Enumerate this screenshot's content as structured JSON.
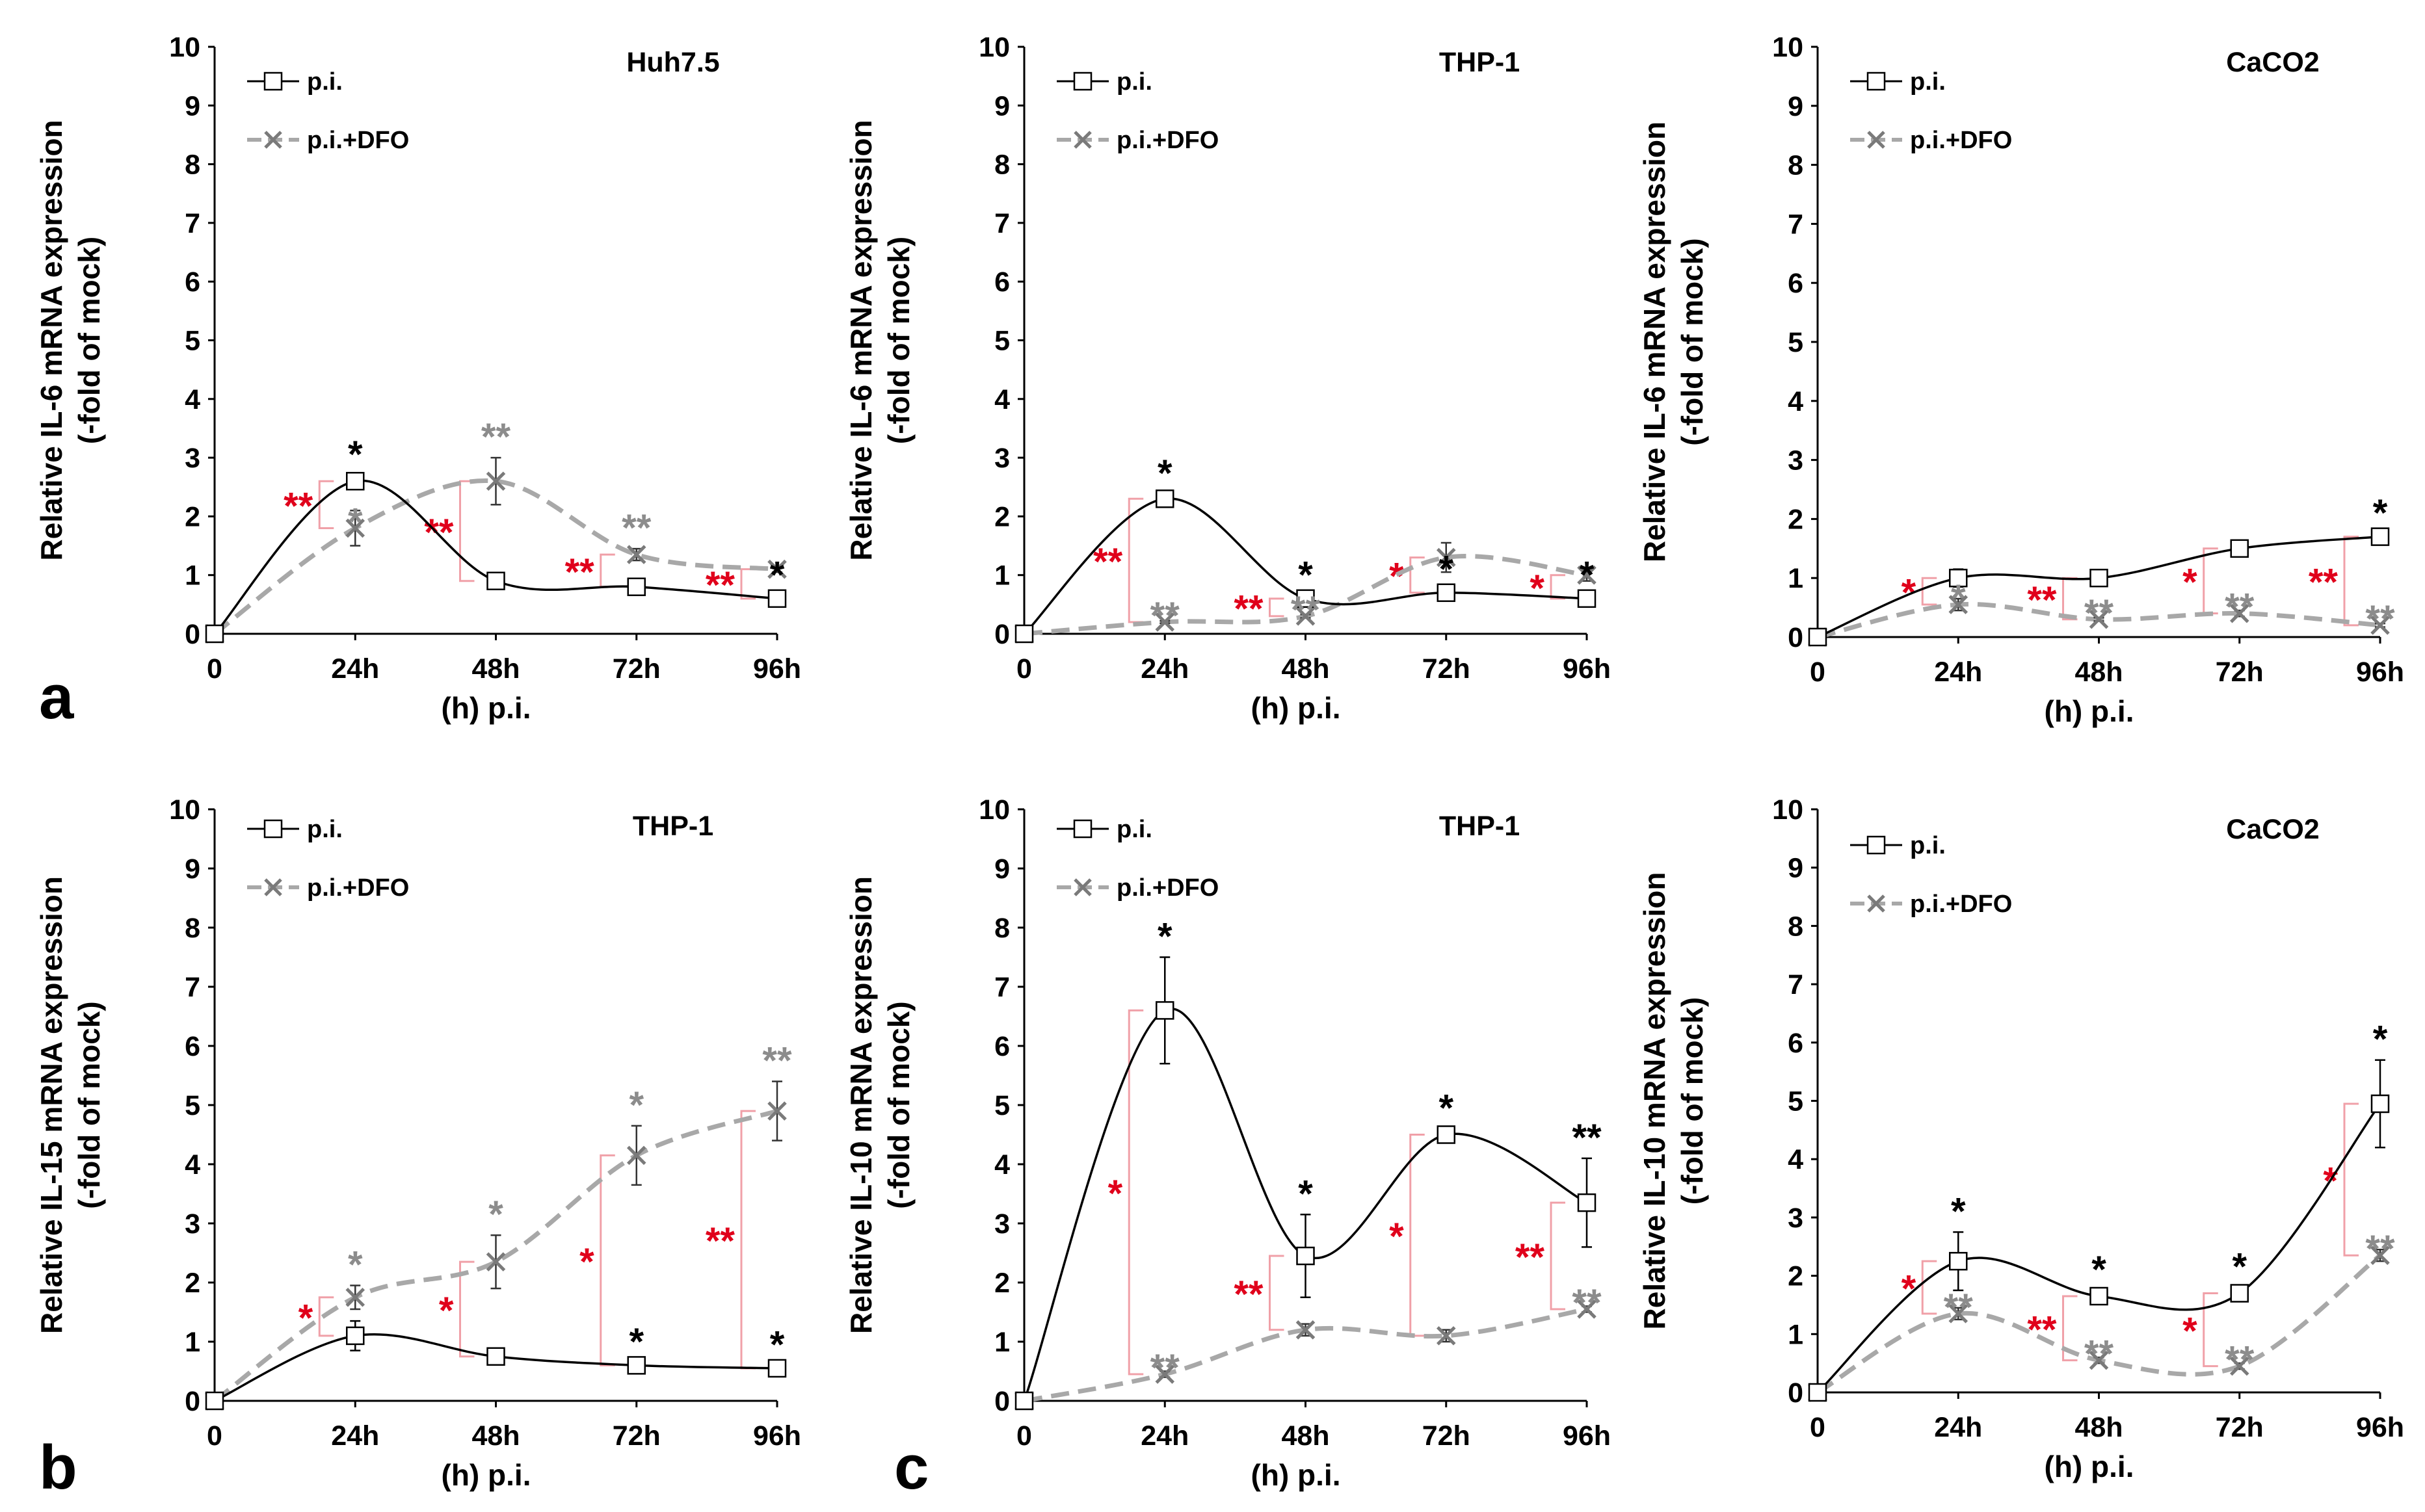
{
  "panel_labels": [
    "a",
    "b",
    "c"
  ],
  "colors": {
    "pi": "#000000",
    "dfo": "#8c8c8c",
    "dfo_dash": "#a8a8a8",
    "sig_red": "#e0001b",
    "bracket": "#f0a0a8"
  },
  "chart_data": [
    {
      "type": "line",
      "title": "Huh7.5",
      "ylabel": [
        "Relative IL-6 mRNA expression",
        "(-fold of mock)"
      ],
      "xlabel": "(h) p.i.",
      "categories": [
        "0",
        "24h",
        "48h",
        "72h",
        "96h"
      ],
      "ylim": [
        0,
        10
      ],
      "yticks": [
        "0",
        "1",
        "2",
        "3",
        "4",
        "5",
        "6",
        "7",
        "8",
        "9",
        "10"
      ],
      "series": [
        {
          "name": "p.i.",
          "values": [
            0,
            2.6,
            0.9,
            0.8,
            0.6
          ],
          "errors": [
            0,
            0.1,
            0.05,
            0.05,
            0.05
          ],
          "sig": [
            "",
            "*",
            "",
            "",
            "*"
          ]
        },
        {
          "name": "p.i.+DFO",
          "values": [
            0,
            1.8,
            2.6,
            1.35,
            1.1
          ],
          "errors": [
            0,
            0.3,
            0.4,
            0.1,
            0.05
          ],
          "sig": [
            "",
            "*",
            "**",
            "**",
            ""
          ]
        }
      ],
      "comparisons": [
        "",
        "**",
        "**",
        "**",
        "**"
      ]
    },
    {
      "type": "line",
      "title": "THP-1",
      "ylabel": [
        "Relative IL-6 mRNA expression",
        "(-fold of mock)"
      ],
      "xlabel": "(h) p.i.",
      "categories": [
        "0",
        "24h",
        "48h",
        "72h",
        "96h"
      ],
      "ylim": [
        0,
        10
      ],
      "yticks": [
        "0",
        "1",
        "2",
        "3",
        "4",
        "5",
        "6",
        "7",
        "8",
        "9",
        "10"
      ],
      "series": [
        {
          "name": "p.i.",
          "values": [
            0,
            2.3,
            0.6,
            0.7,
            0.6
          ],
          "errors": [
            0,
            0.08,
            0.05,
            0.05,
            0.05
          ],
          "sig": [
            "",
            "*",
            "*",
            "*",
            "*"
          ]
        },
        {
          "name": "p.i.+DFO",
          "values": [
            0,
            0.2,
            0.3,
            1.3,
            1.0
          ],
          "errors": [
            0,
            0.02,
            0.03,
            0.25,
            0.1
          ],
          "sig": [
            "",
            "**",
            "**",
            "",
            ""
          ]
        }
      ],
      "comparisons": [
        "",
        "**",
        "**",
        "*",
        "*"
      ]
    },
    {
      "type": "line",
      "title": "CaCO2",
      "ylabel": [
        "Relative IL-6 mRNA expression",
        "(-fold of mock)"
      ],
      "xlabel": "(h) p.i.",
      "categories": [
        "0",
        "24h",
        "48h",
        "72h",
        "96h"
      ],
      "ylim": [
        0,
        10
      ],
      "yticks": [
        "0",
        "1",
        "2",
        "3",
        "4",
        "5",
        "6",
        "7",
        "8",
        "9",
        "10"
      ],
      "series": [
        {
          "name": "p.i.",
          "values": [
            0,
            1.0,
            1.0,
            1.5,
            1.7
          ],
          "errors": [
            0,
            0.15,
            0.05,
            0.05,
            0.05
          ],
          "sig": [
            "",
            "",
            "",
            "",
            "*"
          ]
        },
        {
          "name": "p.i.+DFO",
          "values": [
            0,
            0.55,
            0.3,
            0.4,
            0.2
          ],
          "errors": [
            0,
            0.1,
            0.03,
            0.05,
            0.03
          ],
          "sig": [
            "",
            "*",
            "**",
            "**",
            "**"
          ]
        }
      ],
      "comparisons": [
        "",
        "*",
        "**",
        "*",
        "**"
      ]
    },
    {
      "type": "line",
      "title": "THP-1",
      "ylabel": [
        "Relative IL-15 mRNA expression",
        "(-fold of mock)"
      ],
      "xlabel": "(h) p.i.",
      "categories": [
        "0",
        "24h",
        "48h",
        "72h",
        "96h"
      ],
      "ylim": [
        0,
        10
      ],
      "yticks": [
        "0",
        "1",
        "2",
        "3",
        "4",
        "5",
        "6",
        "7",
        "8",
        "9",
        "10"
      ],
      "series": [
        {
          "name": "p.i.",
          "values": [
            0,
            1.1,
            0.75,
            0.6,
            0.55
          ],
          "errors": [
            0,
            0.25,
            0.05,
            0.05,
            0.05
          ],
          "sig": [
            "",
            "",
            "",
            "*",
            "*"
          ]
        },
        {
          "name": "p.i.+DFO",
          "values": [
            0,
            1.75,
            2.35,
            4.15,
            4.9
          ],
          "errors": [
            0,
            0.2,
            0.45,
            0.5,
            0.5
          ],
          "sig": [
            "",
            "*",
            "*",
            "*",
            "**"
          ]
        }
      ],
      "comparisons": [
        "",
        "*",
        "*",
        "*",
        "**"
      ]
    },
    {
      "type": "line",
      "title": "THP-1",
      "ylabel": [
        "Relative IL-10 mRNA expression",
        "(-fold of mock)"
      ],
      "xlabel": "(h) p.i.",
      "categories": [
        "0",
        "24h",
        "48h",
        "72h",
        "96h"
      ],
      "ylim": [
        0,
        10
      ],
      "yticks": [
        "0",
        "1",
        "2",
        "3",
        "4",
        "5",
        "6",
        "7",
        "8",
        "9",
        "10"
      ],
      "series": [
        {
          "name": "p.i.",
          "values": [
            0,
            6.6,
            2.45,
            4.5,
            3.35
          ],
          "errors": [
            0,
            0.9,
            0.7,
            0.1,
            0.75
          ],
          "sig": [
            "",
            "*",
            "*",
            "*",
            "**"
          ]
        },
        {
          "name": "p.i.+DFO",
          "values": [
            0,
            0.45,
            1.2,
            1.1,
            1.55
          ],
          "errors": [
            0,
            0.05,
            0.1,
            0.1,
            0.05
          ],
          "sig": [
            "",
            "**",
            "",
            "",
            "**"
          ]
        }
      ],
      "comparisons": [
        "",
        "*",
        "**",
        "*",
        "**"
      ]
    },
    {
      "type": "line",
      "title": "CaCO2",
      "ylabel": [
        "Relative IL-10 mRNA expression",
        "(-fold of mock)"
      ],
      "xlabel": "(h) p.i.",
      "categories": [
        "0",
        "24h",
        "48h",
        "72h",
        "96h"
      ],
      "ylim": [
        0,
        10
      ],
      "yticks": [
        "0",
        "1",
        "2",
        "3",
        "4",
        "5",
        "6",
        "7",
        "8",
        "9",
        "10"
      ],
      "series": [
        {
          "name": "p.i.",
          "values": [
            0,
            2.25,
            1.65,
            1.7,
            4.95
          ],
          "errors": [
            0,
            0.5,
            0.1,
            0.1,
            0.75
          ],
          "sig": [
            "",
            "*",
            "*",
            "*",
            "*"
          ]
        },
        {
          "name": "p.i.+DFO",
          "values": [
            0,
            1.35,
            0.55,
            0.45,
            2.35
          ],
          "errors": [
            0,
            0.1,
            0.05,
            0.05,
            0.1
          ],
          "sig": [
            "",
            "**",
            "**",
            "**",
            "**"
          ]
        }
      ],
      "comparisons": [
        "",
        "*",
        "**",
        "*",
        "*"
      ]
    }
  ]
}
